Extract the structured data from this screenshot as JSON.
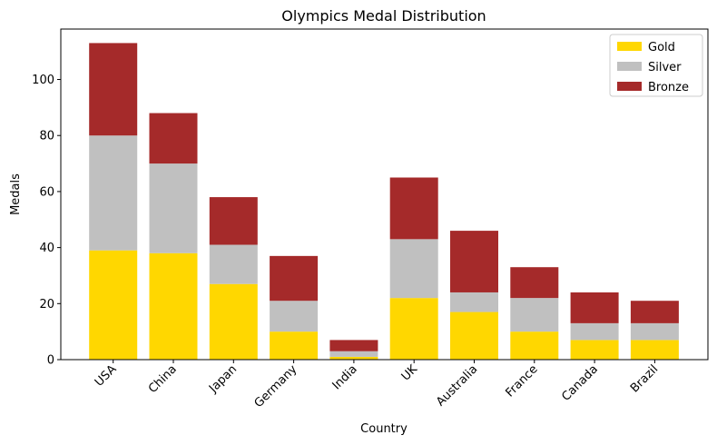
{
  "chart_data": {
    "type": "bar",
    "stacked": true,
    "title": "Olympics Medal Distribution",
    "xlabel": "Country",
    "ylabel": "Medals",
    "ylim": [
      0,
      118
    ],
    "yticks": [
      0,
      20,
      40,
      60,
      80,
      100
    ],
    "grid": false,
    "legend": "top-right",
    "categories": [
      "USA",
      "China",
      "Japan",
      "Germany",
      "India",
      "UK",
      "Australia",
      "France",
      "Canada",
      "Brazil"
    ],
    "series": [
      {
        "name": "Gold",
        "color": "#ffd700",
        "values": [
          39,
          38,
          27,
          10,
          1,
          22,
          17,
          10,
          7,
          7
        ]
      },
      {
        "name": "Silver",
        "color": "#c0c0c0",
        "values": [
          41,
          32,
          14,
          11,
          2,
          21,
          7,
          12,
          6,
          6
        ]
      },
      {
        "name": "Bronze",
        "color": "#a52a2a",
        "values": [
          33,
          18,
          17,
          16,
          4,
          22,
          22,
          11,
          11,
          8
        ]
      }
    ]
  }
}
